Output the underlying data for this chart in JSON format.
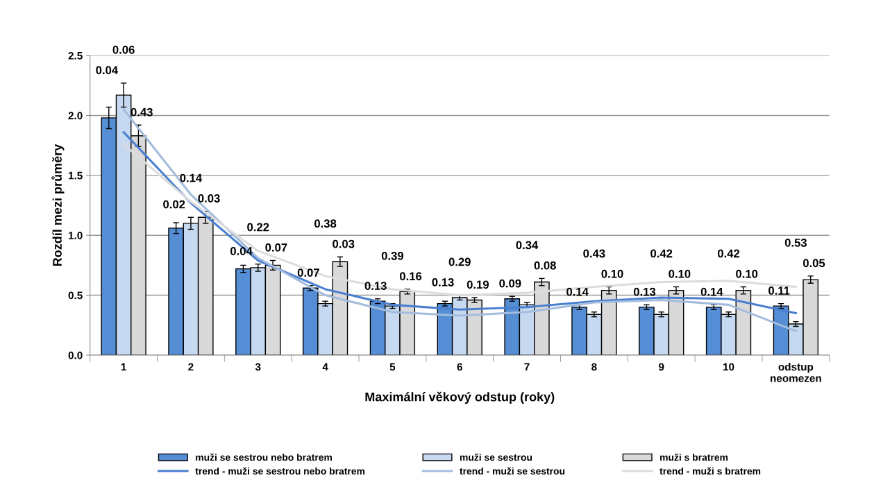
{
  "chart_data": {
    "type": "bar",
    "xlabel": "Maximální věkový odstup (roky)",
    "ylabel": "Rozdíl mezi průměry",
    "categories": [
      "1",
      "2",
      "3",
      "4",
      "5",
      "6",
      "7",
      "8",
      "9",
      "10",
      "odstup\nneomezen"
    ],
    "series": [
      {
        "name": "muži se sestrou nebo bratrem",
        "color": "#558ed5",
        "values": [
          1.98,
          1.06,
          0.72,
          0.56,
          0.45,
          0.43,
          0.47,
          0.4,
          0.4,
          0.4,
          0.41
        ],
        "errors": [
          0.09,
          0.045,
          0.03,
          0.02,
          0.02,
          0.02,
          0.02,
          0.02,
          0.02,
          0.02,
          0.02
        ]
      },
      {
        "name": "muži se sestrou",
        "color": "#c6d9f1",
        "values": [
          2.17,
          1.1,
          0.73,
          0.43,
          0.41,
          0.48,
          0.42,
          0.34,
          0.34,
          0.34,
          0.26
        ],
        "errors": [
          0.1,
          0.05,
          0.03,
          0.02,
          0.02,
          0.02,
          0.02,
          0.02,
          0.02,
          0.02,
          0.02
        ]
      },
      {
        "name": "muži s bratrem",
        "color": "#d9d9d9",
        "values": [
          1.83,
          1.15,
          0.75,
          0.78,
          0.53,
          0.46,
          0.61,
          0.54,
          0.54,
          0.54,
          0.63
        ],
        "errors": [
          0.09,
          0.05,
          0.04,
          0.04,
          0.02,
          0.02,
          0.03,
          0.03,
          0.03,
          0.03,
          0.03
        ]
      },
      {
        "name": "trend - muži se sestrou nebo bratrem",
        "type": "line",
        "color": "#4a7fd0",
        "values": [
          1.86,
          1.27,
          0.79,
          0.55,
          0.42,
          0.38,
          0.4,
          0.45,
          0.48,
          0.47,
          0.35
        ]
      },
      {
        "name": "trend - muži se sestrou",
        "type": "line",
        "color": "#a3bcdd",
        "values": [
          2.05,
          1.34,
          0.81,
          0.5,
          0.36,
          0.33,
          0.36,
          0.44,
          0.46,
          0.42,
          0.2
        ]
      },
      {
        "name": "trend - muži s bratrem",
        "type": "line",
        "color": "#dcdcdc",
        "values": [
          1.76,
          1.28,
          0.87,
          0.66,
          0.55,
          0.5,
          0.52,
          0.57,
          0.61,
          0.62,
          0.57
        ]
      }
    ],
    "ylim": [
      0,
      2.5
    ],
    "yticks": [
      {
        "value": 0,
        "label": "0.0"
      },
      {
        "value": 0.5,
        "label": "0.5"
      },
      {
        "value": 1,
        "label": "1.0"
      },
      {
        "value": 1.5,
        "label": "1.5"
      },
      {
        "value": 2,
        "label": "2.0"
      },
      {
        "value": 2.5,
        "label": "2.5"
      }
    ],
    "grid": "y",
    "legend": "bottom",
    "annotations": [
      "0.04",
      "0.06",
      "0.43",
      "0.02",
      "0.14",
      "0.03",
      "0.04",
      "0.22",
      "0.07",
      "0.07",
      "0.38",
      "0.03",
      "0.13",
      "0.39",
      "0.16",
      "0.13",
      "0.29",
      "0.19",
      "0.09",
      "0.34",
      "0.08",
      "0.14",
      "0.43",
      "0.10",
      "0.13",
      "0.42",
      "0.10",
      "0.14",
      "0.42",
      "0.10",
      "0.11",
      "0.53",
      "0.05"
    ]
  }
}
